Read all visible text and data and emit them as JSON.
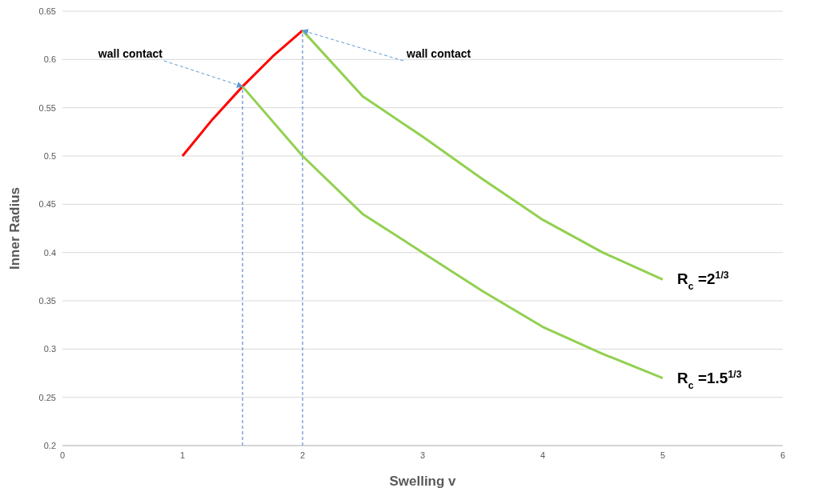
{
  "chart_data": {
    "type": "line",
    "xlabel": "Swelling v",
    "ylabel": "Inner Radius",
    "xlim": [
      0,
      6
    ],
    "xticks": [
      0,
      1,
      2,
      3,
      4,
      5,
      6
    ],
    "ylim": [
      0.2,
      0.65
    ],
    "yticks": [
      0.2,
      0.25,
      0.3,
      0.35,
      0.4,
      0.45,
      0.5,
      0.55,
      0.6,
      0.65
    ],
    "grid": "y",
    "legend": false,
    "marker": "none",
    "line_style": "solid",
    "series": [
      {
        "color": "#ff0000",
        "x": [
          1,
          1.25,
          1.5,
          1.75,
          2
        ],
        "values": [
          0.5,
          0.538,
          0.572,
          0.603,
          0.63
        ]
      },
      {
        "name": "R$_{c}$ =2$^{1/3}$",
        "color": "#92d050",
        "x": [
          2,
          2.5,
          3,
          3.5,
          4,
          4.5,
          5
        ],
        "values": [
          0.63,
          0.562,
          0.52,
          0.476,
          0.434,
          0.4,
          0.372
        ]
      },
      {
        "name": "R$_{c}$ =1.5$^{1/3}$",
        "color": "#92d050",
        "x": [
          1.5,
          2,
          2.5,
          3,
          3.5,
          4,
          4.5,
          5
        ],
        "values": [
          0.572,
          0.5,
          0.44,
          0.4,
          0.36,
          0.323,
          0.295,
          0.27
        ]
      }
    ],
    "ref_lines": [
      {
        "axis": "x",
        "value": 1.5,
        "color": "#4472c4",
        "line_style": "dashed"
      },
      {
        "axis": "x",
        "value": 2,
        "color": "#4472c4",
        "line_style": "dashed"
      }
    ],
    "annotations": [
      {
        "text": "wall contact",
        "x": 1.5,
        "y": 0.572
      },
      {
        "text": "wall contact",
        "x": 2,
        "y": 0.63
      }
    ]
  }
}
